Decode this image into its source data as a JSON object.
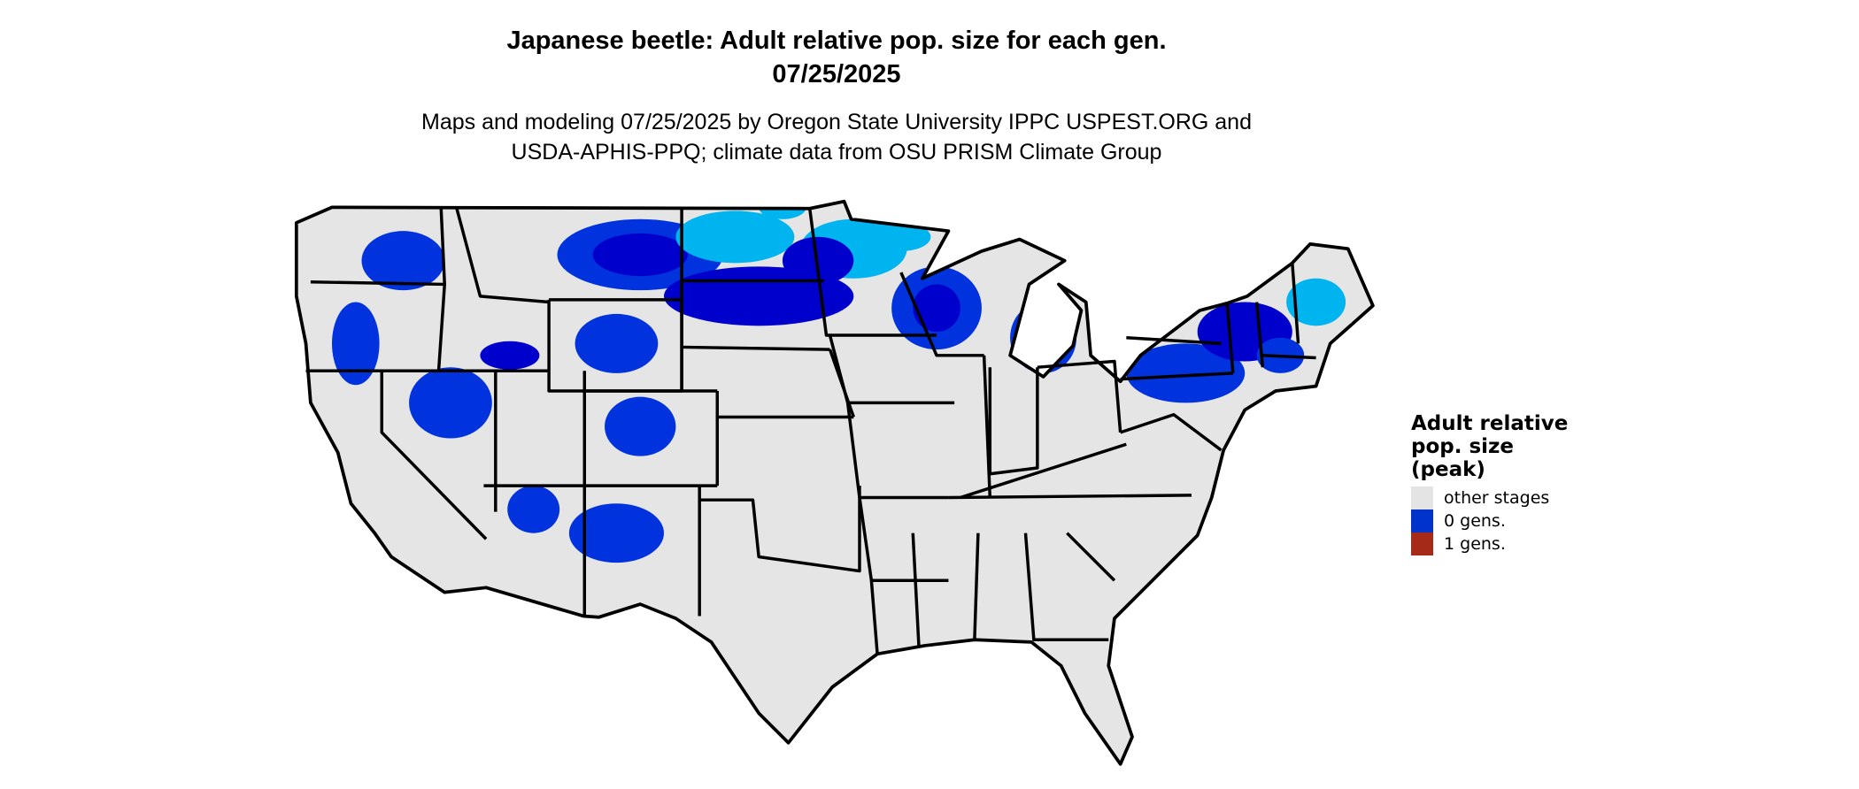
{
  "title": {
    "line1": "Japanese beetle: Adult relative pop. size for each gen.",
    "line2": "07/25/2025"
  },
  "subtitle": {
    "line1": "Maps and modeling 07/25/2025 by Oregon State University IPPC USPEST.ORG and",
    "line2": "USDA-APHIS-PPQ; climate data from OSU PRISM Climate Group"
  },
  "map": {
    "region": "Contiguous United States",
    "background_color": "#e5e5e5",
    "border_color": "#000000",
    "shade_colors": {
      "dark": "#0000cd",
      "medium": "#0033dd",
      "light": "#00b4f0"
    }
  },
  "legend": {
    "title_lines": [
      "Adult relative",
      "pop. size",
      "(peak)"
    ],
    "items": [
      {
        "label": "other stages",
        "color": "#e4e4e4"
      },
      {
        "label": "0 gens.",
        "color": "#0033cc"
      },
      {
        "label": "1 gens.",
        "color": "#a52a17"
      }
    ]
  }
}
